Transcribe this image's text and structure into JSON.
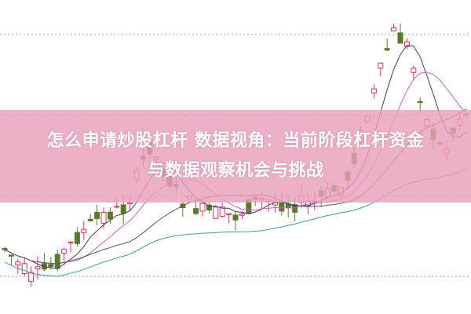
{
  "banner": {
    "title_line1": "怎么申请炒股杠杆 数据视角：当前阶段杠杆资金",
    "title_line2": "与数据观察机会与挑战"
  },
  "colors": {
    "up": "#e0305a",
    "down": "#5a7a2a",
    "ma_short": "#3a3a6a",
    "ma_mid": "#d060c0",
    "ma_long": "#30a0a0",
    "banner": "#e8a0ba"
  }
}
